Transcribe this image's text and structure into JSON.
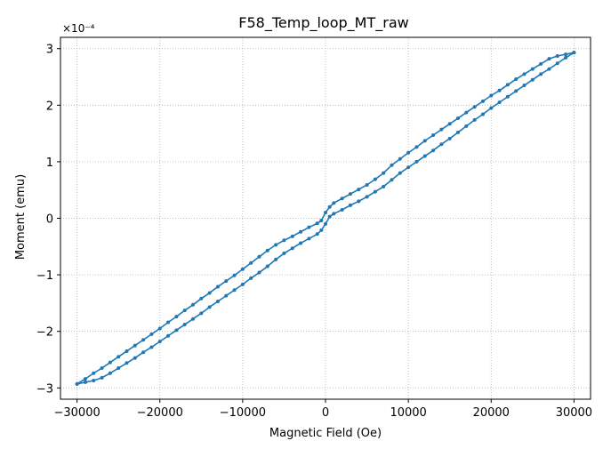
{
  "chart_data": {
    "type": "line",
    "title": "F58_Temp_loop_MT_raw",
    "xlabel": "Magnetic Field (Oe)",
    "ylabel": "Moment (emu)",
    "y_scale_label": "×10⁻⁴",
    "xlim": [
      -32000,
      32000
    ],
    "ylim": [
      -3.2,
      3.2
    ],
    "xticks": [
      -30000,
      -20000,
      -10000,
      0,
      10000,
      20000,
      30000
    ],
    "xtick_labels": [
      "−30000",
      "−20000",
      "−10000",
      "0",
      "10000",
      "20000",
      "30000"
    ],
    "yticks": [
      -3,
      -2,
      -1,
      0,
      1,
      2,
      3
    ],
    "ytick_labels": [
      "−3",
      "−2",
      "−1",
      "0",
      "1",
      "2",
      "3"
    ],
    "grid": true,
    "grid_style": "dotted",
    "color": "#1f77b4",
    "series": [
      {
        "x": [
          -30000,
          -29000,
          -28000,
          -27000,
          -26000,
          -25000,
          -24000,
          -23000,
          -22000,
          -21000,
          -20000,
          -19000,
          -18000,
          -17000,
          -16000,
          -15000,
          -14000,
          -13000,
          -12000,
          -11000,
          -10000,
          -9000,
          -8000,
          -7000,
          -6000,
          -5000,
          -4000,
          -3000,
          -2000,
          -1000,
          -500,
          0,
          500,
          1000,
          2000,
          3000,
          4000,
          5000,
          6000,
          7000,
          8000,
          9000,
          10000,
          11000,
          12000,
          13000,
          14000,
          15000,
          16000,
          17000,
          18000,
          19000,
          20000,
          21000,
          22000,
          23000,
          24000,
          25000,
          26000,
          27000,
          28000,
          29000,
          30000
        ],
        "y": [
          -2.93,
          -2.84,
          -2.74,
          -2.65,
          -2.55,
          -2.45,
          -2.35,
          -2.25,
          -2.15,
          -2.05,
          -1.95,
          -1.84,
          -1.74,
          -1.63,
          -1.53,
          -1.42,
          -1.32,
          -1.21,
          -1.11,
          -1.01,
          -0.9,
          -0.79,
          -0.68,
          -0.57,
          -0.47,
          -0.39,
          -0.32,
          -0.24,
          -0.16,
          -0.09,
          -0.04,
          0.1,
          0.2,
          0.27,
          0.35,
          0.43,
          0.51,
          0.59,
          0.69,
          0.8,
          0.94,
          1.05,
          1.16,
          1.26,
          1.37,
          1.47,
          1.57,
          1.67,
          1.77,
          1.87,
          1.97,
          2.07,
          2.17,
          2.26,
          2.36,
          2.46,
          2.55,
          2.64,
          2.73,
          2.82,
          2.87,
          2.9,
          2.93
        ]
      },
      {
        "x": [
          30000,
          29000,
          28000,
          27000,
          26000,
          25000,
          24000,
          23000,
          22000,
          21000,
          20000,
          19000,
          18000,
          17000,
          16000,
          15000,
          14000,
          13000,
          12000,
          11000,
          10000,
          9000,
          8000,
          7000,
          6000,
          5000,
          4000,
          3000,
          2000,
          1000,
          500,
          0,
          -500,
          -1000,
          -2000,
          -3000,
          -4000,
          -5000,
          -6000,
          -7000,
          -8000,
          -9000,
          -10000,
          -11000,
          -12000,
          -13000,
          -14000,
          -15000,
          -16000,
          -17000,
          -18000,
          -19000,
          -20000,
          -21000,
          -22000,
          -23000,
          -24000,
          -25000,
          -26000,
          -27000,
          -28000,
          -29000,
          -30000
        ],
        "y": [
          2.93,
          2.84,
          2.74,
          2.64,
          2.55,
          2.45,
          2.35,
          2.25,
          2.15,
          2.05,
          1.95,
          1.84,
          1.74,
          1.63,
          1.52,
          1.41,
          1.31,
          1.2,
          1.1,
          1.0,
          0.9,
          0.8,
          0.68,
          0.56,
          0.47,
          0.38,
          0.3,
          0.23,
          0.15,
          0.08,
          0.03,
          -0.1,
          -0.21,
          -0.28,
          -0.36,
          -0.44,
          -0.53,
          -0.62,
          -0.73,
          -0.85,
          -0.96,
          -1.06,
          -1.17,
          -1.27,
          -1.37,
          -1.47,
          -1.57,
          -1.68,
          -1.78,
          -1.88,
          -1.98,
          -2.08,
          -2.18,
          -2.28,
          -2.37,
          -2.47,
          -2.56,
          -2.65,
          -2.74,
          -2.82,
          -2.87,
          -2.9,
          -2.93
        ]
      }
    ]
  }
}
